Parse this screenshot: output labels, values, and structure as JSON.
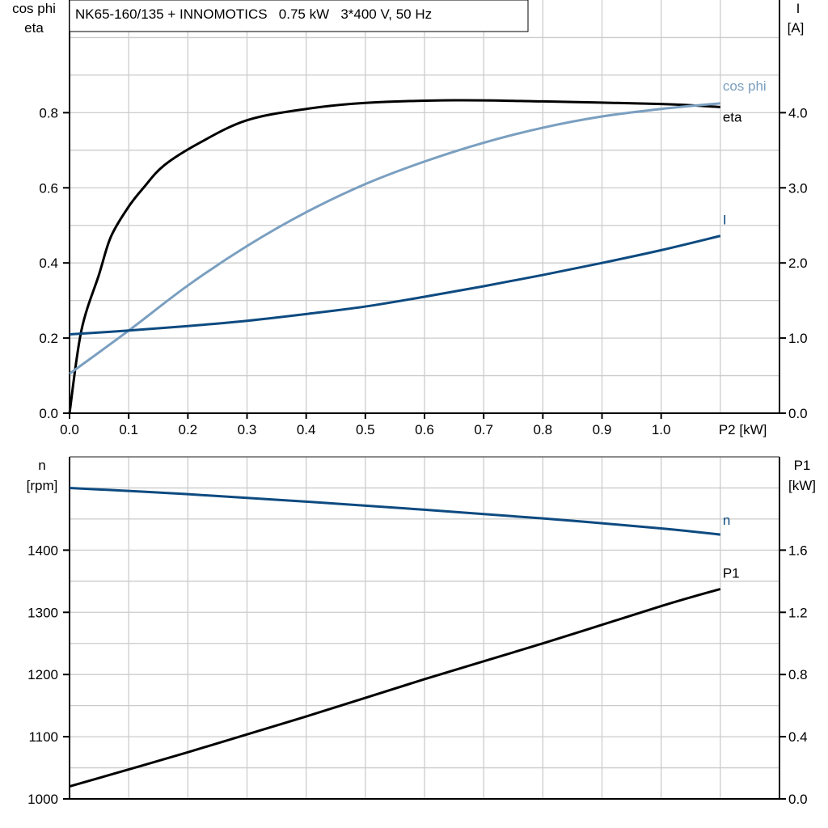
{
  "colors": {
    "eta": "#000000",
    "cos_phi": "#7a9fc0",
    "I": "#0d4a80",
    "n": "#0d4a80",
    "P1": "#000000",
    "grid": "#cccccc"
  },
  "chart_data": [
    {
      "type": "line",
      "title": "NK65-160/135 + INNOMOTICS   0.75 kW   3*400 V, 50 Hz",
      "xlabel": "P2 [kW]",
      "ylabel_left": [
        "cos phi",
        "eta"
      ],
      "ylabel_right": [
        "I",
        "[A]"
      ],
      "xlim": [
        0,
        1.2
      ],
      "ylim_left": [
        0,
        1.1
      ],
      "ylim_right": [
        0,
        5.5
      ],
      "x_ticks": [
        "0.0",
        "0.1",
        "0.2",
        "0.3",
        "0.4",
        "0.5",
        "0.6",
        "0.7",
        "0.8",
        "0.9",
        "1.0"
      ],
      "y_left_ticks": [
        "0.0",
        "0.2",
        "0.4",
        "0.6",
        "0.8"
      ],
      "y_right_ticks": [
        "0.0",
        "1.0",
        "2.0",
        "3.0",
        "4.0"
      ],
      "grid": true,
      "series": [
        {
          "name": "eta",
          "axis": "left",
          "color_key": "eta",
          "x": [
            0,
            0.02,
            0.05,
            0.07,
            0.1,
            0.125,
            0.16,
            0.22,
            0.3,
            0.4,
            0.5,
            0.65,
            0.8,
            1.0,
            1.1
          ],
          "y": [
            0,
            0.22,
            0.37,
            0.47,
            0.55,
            0.6,
            0.66,
            0.72,
            0.78,
            0.81,
            0.826,
            0.833,
            0.83,
            0.823,
            0.815
          ]
        },
        {
          "name": "cos phi",
          "axis": "left",
          "color_key": "cos_phi",
          "x": [
            0,
            0.1,
            0.2,
            0.3,
            0.4,
            0.5,
            0.6,
            0.7,
            0.8,
            0.9,
            1.0,
            1.1
          ],
          "y": [
            0.105,
            0.22,
            0.34,
            0.445,
            0.535,
            0.61,
            0.67,
            0.72,
            0.76,
            0.79,
            0.81,
            0.825
          ]
        },
        {
          "name": "I",
          "axis": "right",
          "color_key": "I",
          "x": [
            0,
            0.1,
            0.2,
            0.3,
            0.4,
            0.5,
            0.6,
            0.7,
            0.8,
            0.9,
            1.0,
            1.1
          ],
          "y": [
            1.05,
            1.1,
            1.16,
            1.23,
            1.32,
            1.42,
            1.55,
            1.69,
            1.84,
            2.0,
            2.17,
            2.36
          ]
        }
      ]
    },
    {
      "type": "line",
      "xlim": [
        0,
        1.2
      ],
      "ylabel_left": [
        "n",
        "[rpm]"
      ],
      "ylabel_right": [
        "P1",
        "[kW]"
      ],
      "ylim_left": [
        1000,
        1550
      ],
      "ylim_right": [
        0,
        2.2
      ],
      "y_left_ticks": [
        "1000",
        "1100",
        "1200",
        "1300",
        "1400"
      ],
      "y_right_ticks": [
        "0.0",
        "0.4",
        "0.8",
        "1.2",
        "1.6"
      ],
      "grid": true,
      "series": [
        {
          "name": "n",
          "axis": "left",
          "color_key": "n",
          "x": [
            0,
            0.2,
            0.4,
            0.6,
            0.8,
            1.0,
            1.1
          ],
          "y": [
            1500,
            1490,
            1478,
            1465,
            1451,
            1435,
            1425
          ]
        },
        {
          "name": "P1",
          "axis": "right",
          "color_key": "P1",
          "x": [
            0,
            0.2,
            0.4,
            0.6,
            0.8,
            1.0,
            1.1
          ],
          "y": [
            0.08,
            0.3,
            0.53,
            0.77,
            1.0,
            1.24,
            1.35
          ]
        }
      ]
    }
  ]
}
